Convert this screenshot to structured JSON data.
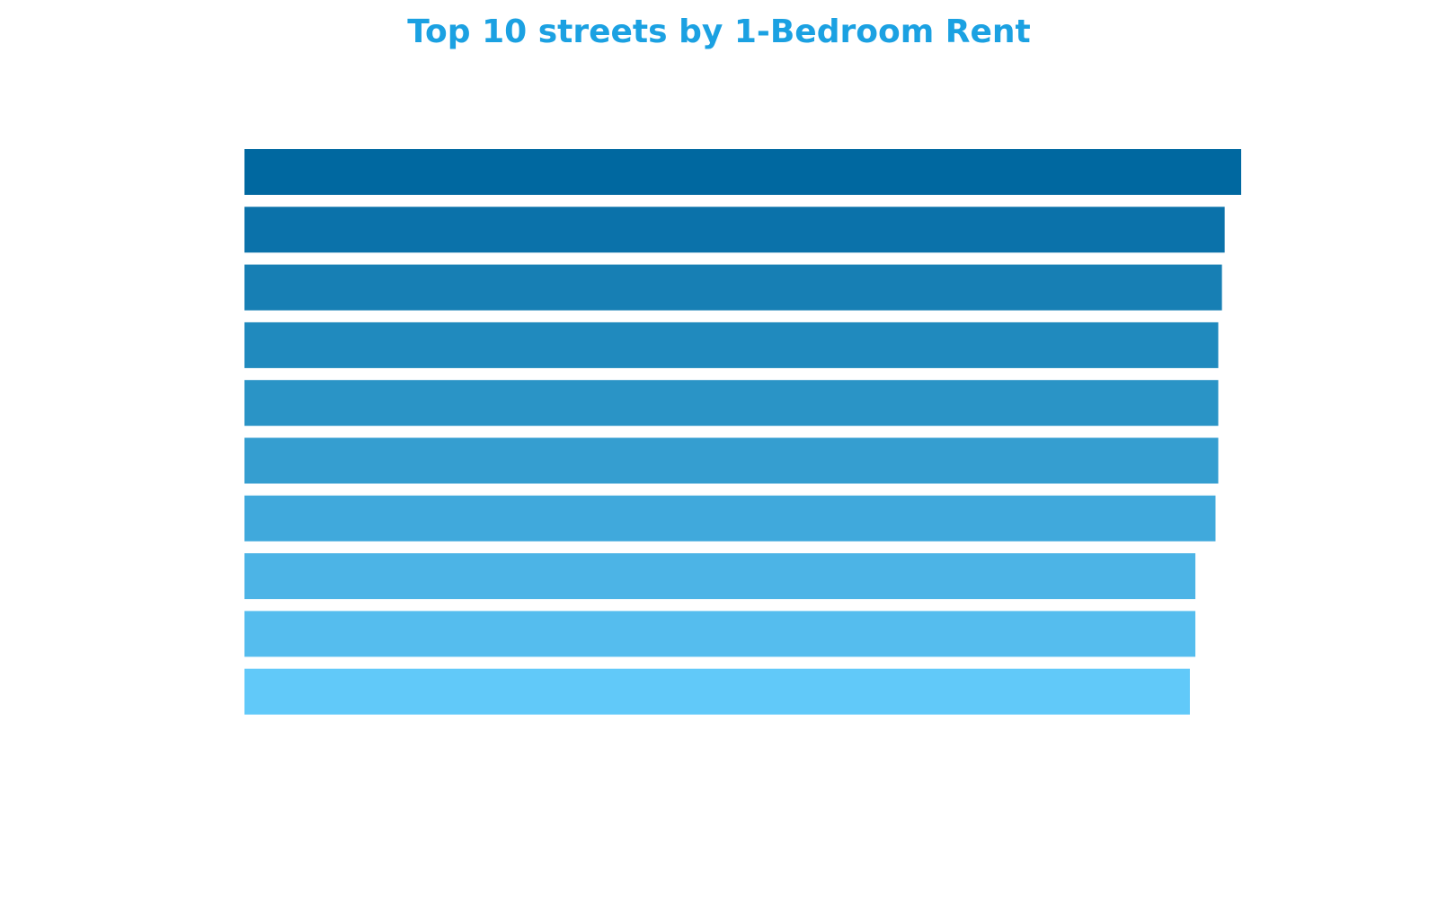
{
  "chart_data": {
    "type": "bar",
    "orientation": "horizontal",
    "title": "Top 10 streets by 1-Bedroom Rent",
    "values": [
      1088,
      1070,
      1067,
      1063,
      1063,
      1063,
      1060,
      1038,
      1038,
      1032
    ],
    "colors": [
      "#0068a0",
      "#0b72aa",
      "#177fb4",
      "#208abe",
      "#2a94c6",
      "#359ed0",
      "#40a9dc",
      "#4cb4e6",
      "#55bdee",
      "#61c9f9"
    ],
    "title_color": "#1ba1e2"
  }
}
